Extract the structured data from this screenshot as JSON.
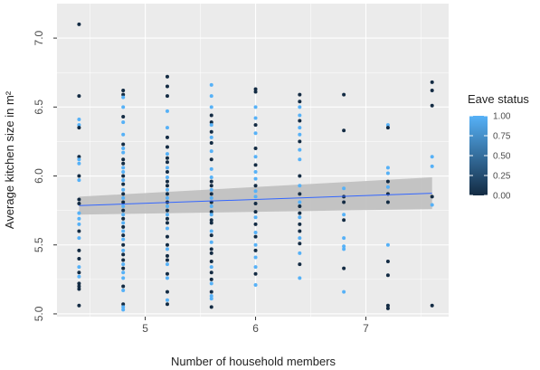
{
  "chart_data": {
    "type": "scatter",
    "title": "",
    "xlabel": "Number of household members",
    "ylabel": "Average kitchen size in m²",
    "xlim": [
      4.2,
      7.75
    ],
    "ylim": [
      4.98,
      7.25
    ],
    "x_ticks": [
      5,
      6,
      7
    ],
    "y_ticks": [
      5.0,
      5.5,
      6.0,
      6.5,
      7.0
    ],
    "x_tick_labels": [
      "5",
      "6",
      "7"
    ],
    "y_tick_labels": [
      "5.0",
      "5.5",
      "6.0",
      "6.5",
      "7.0"
    ],
    "grid": true,
    "colors": {
      "panel": "#ebebeb",
      "grid": "#ffffff",
      "low": "#132b43",
      "high": "#56b1f7",
      "trend": "#3366ff",
      "ribbon": "#bfbfbf"
    },
    "legend": {
      "title": "Eave status",
      "position": "right",
      "ticks": [
        1.0,
        0.75,
        0.5,
        0.25,
        0.0
      ],
      "tick_labels": [
        "1.00",
        "0.75",
        "0.50",
        "0.25",
        "0.00"
      ]
    },
    "trend": {
      "x": [
        4.4,
        7.6
      ],
      "y": [
        5.785,
        5.875
      ],
      "ci_lower": [
        5.72,
        5.76
      ],
      "ci_upper": [
        5.85,
        5.99
      ]
    },
    "points": [
      [
        4.4,
        7.1,
        0
      ],
      [
        4.4,
        6.58,
        0
      ],
      [
        4.4,
        6.41,
        1
      ],
      [
        4.4,
        6.37,
        1
      ],
      [
        4.4,
        6.35,
        0
      ],
      [
        4.4,
        6.14,
        0
      ],
      [
        4.4,
        6.12,
        1
      ],
      [
        4.4,
        6.09,
        1
      ],
      [
        4.4,
        6.0,
        0
      ],
      [
        4.4,
        5.97,
        1
      ],
      [
        4.4,
        5.83,
        0
      ],
      [
        4.4,
        5.8,
        0
      ],
      [
        4.4,
        5.73,
        1
      ],
      [
        4.4,
        5.69,
        1
      ],
      [
        4.4,
        5.65,
        1
      ],
      [
        4.4,
        5.6,
        0
      ],
      [
        4.4,
        5.55,
        1
      ],
      [
        4.4,
        5.46,
        0
      ],
      [
        4.4,
        5.4,
        0
      ],
      [
        4.4,
        5.34,
        1
      ],
      [
        4.4,
        5.3,
        0
      ],
      [
        4.4,
        5.27,
        1
      ],
      [
        4.4,
        5.22,
        0
      ],
      [
        4.4,
        5.2,
        0
      ],
      [
        4.4,
        5.18,
        0
      ],
      [
        4.4,
        5.06,
        0
      ],
      [
        4.8,
        6.62,
        0
      ],
      [
        4.8,
        6.59,
        0
      ],
      [
        4.8,
        6.57,
        1
      ],
      [
        4.8,
        6.5,
        1
      ],
      [
        4.8,
        6.43,
        0
      ],
      [
        4.8,
        6.39,
        1
      ],
      [
        4.8,
        6.3,
        1
      ],
      [
        4.8,
        6.23,
        0
      ],
      [
        4.8,
        6.2,
        1
      ],
      [
        4.8,
        6.17,
        1
      ],
      [
        4.8,
        6.12,
        0
      ],
      [
        4.8,
        6.09,
        0
      ],
      [
        4.8,
        6.06,
        1
      ],
      [
        4.8,
        6.03,
        1
      ],
      [
        4.8,
        6.0,
        0
      ],
      [
        4.8,
        5.97,
        1
      ],
      [
        4.8,
        5.94,
        0
      ],
      [
        4.8,
        5.9,
        1
      ],
      [
        4.8,
        5.87,
        0
      ],
      [
        4.8,
        5.84,
        1
      ],
      [
        4.8,
        5.81,
        0
      ],
      [
        4.8,
        5.78,
        1
      ],
      [
        4.8,
        5.75,
        0
      ],
      [
        4.8,
        5.72,
        1
      ],
      [
        4.8,
        5.69,
        0
      ],
      [
        4.8,
        5.66,
        1
      ],
      [
        4.8,
        5.63,
        0
      ],
      [
        4.8,
        5.6,
        1
      ],
      [
        4.8,
        5.57,
        0
      ],
      [
        4.8,
        5.54,
        1
      ],
      [
        4.8,
        5.5,
        0
      ],
      [
        4.8,
        5.46,
        1
      ],
      [
        4.8,
        5.43,
        0
      ],
      [
        4.8,
        5.39,
        0
      ],
      [
        4.8,
        5.36,
        1
      ],
      [
        4.8,
        5.33,
        0
      ],
      [
        4.8,
        5.3,
        1
      ],
      [
        4.8,
        5.26,
        1
      ],
      [
        4.8,
        5.2,
        0
      ],
      [
        4.8,
        5.17,
        1
      ],
      [
        4.8,
        5.07,
        0
      ],
      [
        4.8,
        5.05,
        1
      ],
      [
        4.8,
        5.03,
        1
      ],
      [
        5.2,
        6.72,
        0
      ],
      [
        5.2,
        6.65,
        0
      ],
      [
        5.2,
        6.58,
        0
      ],
      [
        5.2,
        6.47,
        1
      ],
      [
        5.2,
        6.35,
        1
      ],
      [
        5.2,
        6.28,
        0
      ],
      [
        5.2,
        6.21,
        0
      ],
      [
        5.2,
        6.16,
        1
      ],
      [
        5.2,
        6.13,
        0
      ],
      [
        5.2,
        6.1,
        0
      ],
      [
        5.2,
        6.06,
        1
      ],
      [
        5.2,
        6.03,
        0
      ],
      [
        5.2,
        5.99,
        1
      ],
      [
        5.2,
        5.96,
        0
      ],
      [
        5.2,
        5.93,
        0
      ],
      [
        5.2,
        5.9,
        1
      ],
      [
        5.2,
        5.87,
        0
      ],
      [
        5.2,
        5.84,
        1
      ],
      [
        5.2,
        5.81,
        0
      ],
      [
        5.2,
        5.78,
        1
      ],
      [
        5.2,
        5.75,
        0
      ],
      [
        5.2,
        5.72,
        1
      ],
      [
        5.2,
        5.69,
        0
      ],
      [
        5.2,
        5.66,
        0
      ],
      [
        5.2,
        5.62,
        1
      ],
      [
        5.2,
        5.56,
        0
      ],
      [
        5.2,
        5.5,
        0
      ],
      [
        5.2,
        5.47,
        1
      ],
      [
        5.2,
        5.42,
        0
      ],
      [
        5.2,
        5.39,
        0
      ],
      [
        5.2,
        5.36,
        1
      ],
      [
        5.2,
        5.29,
        0
      ],
      [
        5.2,
        5.26,
        1
      ],
      [
        5.2,
        5.16,
        0
      ],
      [
        5.2,
        5.1,
        1
      ],
      [
        5.2,
        5.07,
        0
      ],
      [
        5.6,
        6.66,
        1
      ],
      [
        5.6,
        6.58,
        1
      ],
      [
        5.6,
        6.5,
        1
      ],
      [
        5.6,
        6.44,
        0
      ],
      [
        5.6,
        6.39,
        0
      ],
      [
        5.6,
        6.37,
        1
      ],
      [
        5.6,
        6.32,
        0
      ],
      [
        5.6,
        6.28,
        1
      ],
      [
        5.6,
        6.24,
        0
      ],
      [
        5.6,
        6.18,
        1
      ],
      [
        5.6,
        6.12,
        0
      ],
      [
        5.6,
        6.05,
        1
      ],
      [
        5.6,
        5.99,
        1
      ],
      [
        5.6,
        5.96,
        0
      ],
      [
        5.6,
        5.93,
        0
      ],
      [
        5.6,
        5.9,
        1
      ],
      [
        5.6,
        5.87,
        0
      ],
      [
        5.6,
        5.84,
        1
      ],
      [
        5.6,
        5.81,
        0
      ],
      [
        5.6,
        5.78,
        1
      ],
      [
        5.6,
        5.74,
        0
      ],
      [
        5.6,
        5.72,
        1
      ],
      [
        5.6,
        5.68,
        0
      ],
      [
        5.6,
        5.66,
        0
      ],
      [
        5.6,
        5.6,
        1
      ],
      [
        5.6,
        5.57,
        0
      ],
      [
        5.6,
        5.52,
        1
      ],
      [
        5.6,
        5.47,
        0
      ],
      [
        5.6,
        5.44,
        0
      ],
      [
        5.6,
        5.38,
        0
      ],
      [
        5.6,
        5.34,
        1
      ],
      [
        5.6,
        5.3,
        0
      ],
      [
        5.6,
        5.25,
        0
      ],
      [
        5.6,
        5.22,
        1
      ],
      [
        5.6,
        5.16,
        0
      ],
      [
        5.6,
        5.13,
        1
      ],
      [
        5.6,
        5.11,
        1
      ],
      [
        5.6,
        5.05,
        0
      ],
      [
        6.0,
        6.63,
        0
      ],
      [
        6.0,
        6.61,
        0
      ],
      [
        6.0,
        6.5,
        1
      ],
      [
        6.0,
        6.42,
        1
      ],
      [
        6.0,
        6.37,
        0
      ],
      [
        6.0,
        6.31,
        1
      ],
      [
        6.0,
        6.2,
        0
      ],
      [
        6.0,
        6.14,
        1
      ],
      [
        6.0,
        6.08,
        0
      ],
      [
        6.0,
        6.03,
        1
      ],
      [
        6.0,
        5.98,
        1
      ],
      [
        6.0,
        5.93,
        0
      ],
      [
        6.0,
        5.89,
        1
      ],
      [
        6.0,
        5.85,
        1
      ],
      [
        6.0,
        5.8,
        0
      ],
      [
        6.0,
        5.74,
        0
      ],
      [
        6.0,
        5.7,
        1
      ],
      [
        6.0,
        5.65,
        0
      ],
      [
        6.0,
        5.59,
        1
      ],
      [
        6.0,
        5.56,
        0
      ],
      [
        6.0,
        5.5,
        1
      ],
      [
        6.0,
        5.46,
        0
      ],
      [
        6.0,
        5.41,
        1
      ],
      [
        6.0,
        5.34,
        1
      ],
      [
        6.0,
        5.29,
        0
      ],
      [
        6.0,
        5.21,
        1
      ],
      [
        6.4,
        6.59,
        0
      ],
      [
        6.4,
        6.54,
        0
      ],
      [
        6.4,
        6.5,
        1
      ],
      [
        6.4,
        6.44,
        1
      ],
      [
        6.4,
        6.4,
        0
      ],
      [
        6.4,
        6.35,
        1
      ],
      [
        6.4,
        6.3,
        1
      ],
      [
        6.4,
        6.25,
        0
      ],
      [
        6.4,
        6.19,
        1
      ],
      [
        6.4,
        6.12,
        1
      ],
      [
        6.4,
        6.0,
        0
      ],
      [
        6.4,
        5.93,
        1
      ],
      [
        6.4,
        5.87,
        0
      ],
      [
        6.4,
        5.81,
        1
      ],
      [
        6.4,
        5.78,
        0
      ],
      [
        6.4,
        5.73,
        0
      ],
      [
        6.4,
        5.7,
        1
      ],
      [
        6.4,
        5.65,
        0
      ],
      [
        6.4,
        5.6,
        0
      ],
      [
        6.4,
        5.55,
        1
      ],
      [
        6.4,
        5.51,
        0
      ],
      [
        6.4,
        5.44,
        1
      ],
      [
        6.4,
        5.36,
        0
      ],
      [
        6.4,
        5.26,
        1
      ],
      [
        6.8,
        6.59,
        0
      ],
      [
        6.8,
        6.33,
        0
      ],
      [
        6.8,
        5.91,
        1
      ],
      [
        6.8,
        5.85,
        0
      ],
      [
        6.8,
        5.81,
        0
      ],
      [
        6.8,
        5.72,
        1
      ],
      [
        6.8,
        5.68,
        0
      ],
      [
        6.8,
        5.55,
        1
      ],
      [
        6.8,
        5.49,
        1
      ],
      [
        6.8,
        5.47,
        1
      ],
      [
        6.8,
        5.33,
        0
      ],
      [
        6.8,
        5.16,
        1
      ],
      [
        7.2,
        6.37,
        1
      ],
      [
        7.2,
        6.35,
        0
      ],
      [
        7.2,
        6.06,
        1
      ],
      [
        7.2,
        6.02,
        1
      ],
      [
        7.2,
        5.96,
        0
      ],
      [
        7.2,
        5.92,
        1
      ],
      [
        7.2,
        5.87,
        0
      ],
      [
        7.2,
        5.81,
        0
      ],
      [
        7.2,
        5.5,
        1
      ],
      [
        7.2,
        5.38,
        0
      ],
      [
        7.2,
        5.28,
        0
      ],
      [
        7.2,
        5.06,
        0
      ],
      [
        7.2,
        5.04,
        0
      ],
      [
        7.6,
        6.68,
        0
      ],
      [
        7.6,
        6.62,
        0
      ],
      [
        7.6,
        6.51,
        0
      ],
      [
        7.6,
        6.14,
        1
      ],
      [
        7.6,
        6.07,
        1
      ],
      [
        7.6,
        5.85,
        0
      ],
      [
        7.6,
        5.79,
        1
      ],
      [
        7.6,
        5.06,
        0
      ]
    ]
  }
}
